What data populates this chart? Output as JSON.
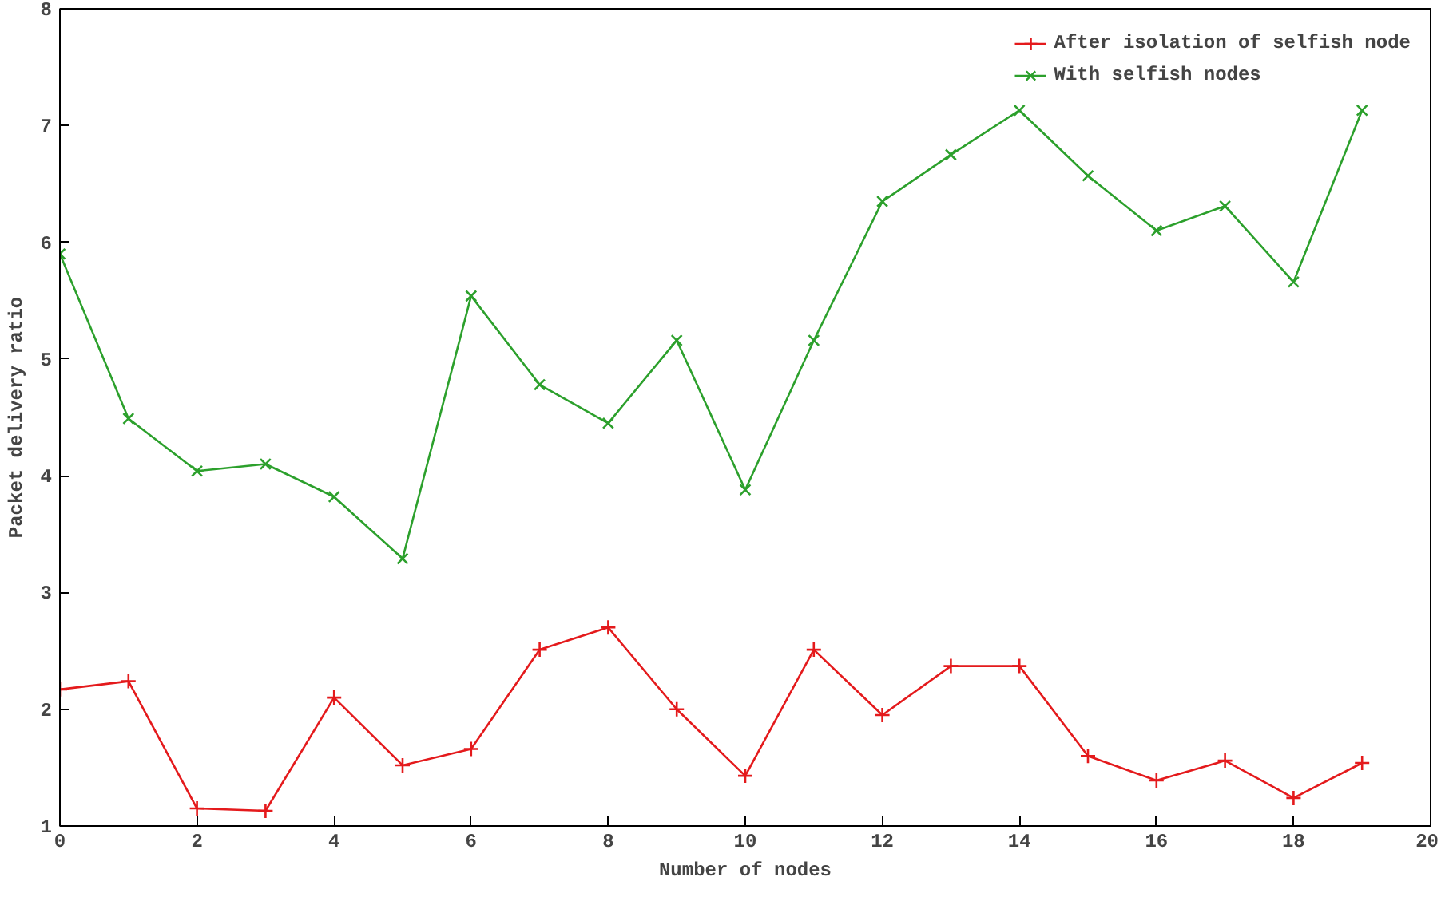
{
  "chart_data": {
    "type": "line",
    "xlabel": "Number of nodes",
    "ylabel": "Packet delivery ratio",
    "x": [
      0,
      1,
      2,
      3,
      4,
      5,
      6,
      7,
      8,
      9,
      10,
      11,
      12,
      13,
      14,
      15,
      16,
      17,
      18,
      19
    ],
    "xlim": [
      0,
      20
    ],
    "ylim": [
      1,
      8
    ],
    "xticks": [
      0,
      2,
      4,
      6,
      8,
      10,
      12,
      14,
      16,
      18,
      20
    ],
    "yticks": [
      1,
      2,
      3,
      4,
      5,
      6,
      7,
      8
    ],
    "grid": false,
    "legend": "top right",
    "line_style": "solid",
    "series": [
      {
        "name": "After isolation of selfish node",
        "color": "#e41a1c",
        "marker": "cross",
        "values": [
          2.17,
          2.24,
          1.15,
          1.13,
          2.1,
          1.52,
          1.66,
          2.51,
          2.7,
          2.0,
          1.43,
          2.51,
          1.95,
          2.37,
          2.37,
          1.6,
          1.39,
          1.56,
          1.24,
          1.54
        ]
      },
      {
        "name": "With selfish nodes",
        "color": "#2ca02c",
        "marker": "x",
        "values": [
          5.9,
          4.49,
          4.04,
          4.1,
          3.82,
          3.29,
          5.54,
          4.78,
          4.45,
          5.16,
          3.88,
          5.16,
          6.35,
          6.75,
          7.13,
          6.57,
          6.1,
          6.31,
          5.66,
          7.13
        ]
      }
    ]
  }
}
